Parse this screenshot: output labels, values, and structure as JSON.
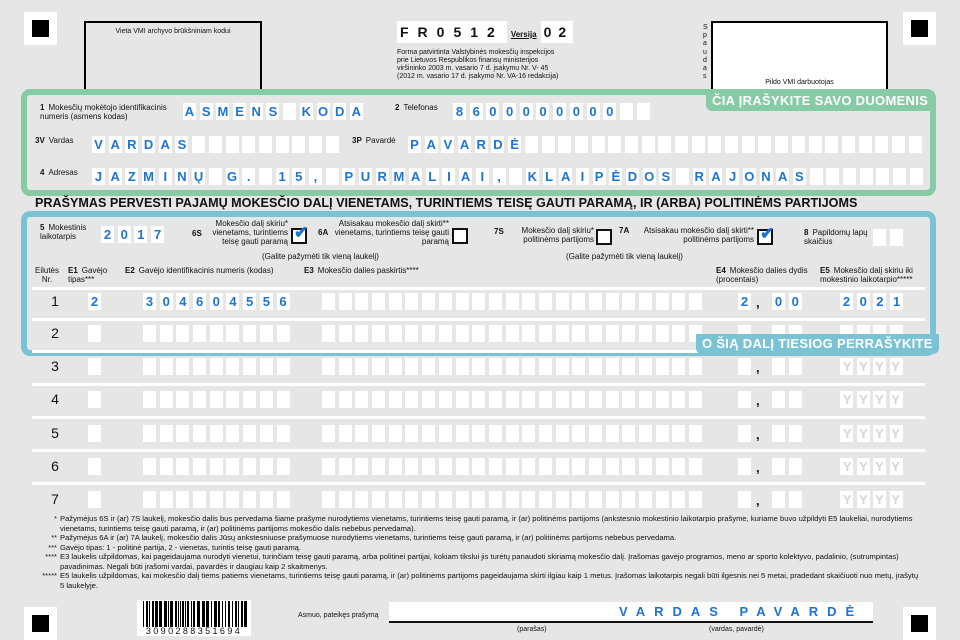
{
  "header": {
    "archive_box_label": "Vieta VMI archyvo brūkšniniam kodui",
    "form_code": "FR0512",
    "version_label": "Versija",
    "version": "02",
    "approval_text": [
      "Forma patvirtinta Valstybinės mokesčių inspekcijos",
      "prie Lietuvos Respublikos finansų ministerijos",
      "viršininko 2003 m. vasario 7 d. įsakymu Nr. V- 45",
      "(2012 m. vasario 17 d. įsakymo Nr. VA-16 redakcija)"
    ],
    "stamp_label": "Spaudas",
    "vmi_box_label": "Pildo VMI darbuotojas"
  },
  "personal": {
    "banner": "ČIA ĮRAŠYKITE SAVO DUOMENIS",
    "banner_color": "#86cba3",
    "id_no": "1",
    "id_label": "Mokesčių mokėtojo identifikacinis numeris (asmens kodas)",
    "id_value": "ASMENS KODAS",
    "phone_no": "2",
    "phone_label": "Telefonas",
    "phone_value": "8600000000",
    "name_no": "3V",
    "name_label": "Vardas",
    "name_value": "VARDAS",
    "surname_no": "3P",
    "surname_label": "Pavardė",
    "surname_value": "PAVARDĖ",
    "address_no": "4",
    "address_label": "Adresas",
    "address_value": "JAZMINŲ G. 15, PURMALIAI, KLAIPĖDOS RAJONAS"
  },
  "title": "PRAŠYMAS PERVESTI PAJAMŲ MOKESČIO DALĮ VIENETAMS, TURINTIEMS TEISĘ GAUTI PARAMĄ, IR (ARBA) POLITINĖMS PARTIJOMS",
  "request": {
    "banner": "O ŠIĄ DALĮ TIESIOG PERRAŠYKITE",
    "banner_color": "#7ac3d4",
    "period_no": "5",
    "period_label": "Mokestinis laikotarpis",
    "period_value": "2017",
    "c6s_no": "6S",
    "c6s_label": "Mokesčio dalį skiriu* vienetams, turintiems teisę gauti paramą",
    "c6s_checked": true,
    "c6a_no": "6A",
    "c6a_label": "Atsisakau mokesčio dalį skirti** vienetams, turintiems teisę gauti paramą",
    "c6a_checked": false,
    "c7s_no": "7S",
    "c7s_label": "Mokesčio dalį skiriu* politinėms partijoms",
    "c7s_checked": false,
    "c7a_no": "7A",
    "c7a_label": "Atsisakau mokesčio dalį skirti** politinėms partijoms",
    "c7a_checked": true,
    "hint": "(Galite pažymėti tik vieną laukelį)",
    "pages_no": "8",
    "pages_label": "Papildomų lapų skaičius",
    "pages_value": ""
  },
  "table": {
    "col_nr": "Eilutės Nr.",
    "e1_no": "E1",
    "e1_label": "Gavėjo tipas***",
    "e2_no": "E2",
    "e2_label": "Gavėjo identifikacinis numeris (kodas)",
    "e3_no": "E3",
    "e3_label": "Mokesčio dalies paskirtis****",
    "e4_no": "E4",
    "e4_label": "Mokesčio dalies dydis (procentais)",
    "e5_no": "E5",
    "e5_label": "Mokesčio dalį skiriu iki mokestinio laikotarpio*****",
    "e5_placeholder": "YYYY",
    "rows": [
      {
        "nr": "1",
        "e1": "2",
        "e2": "304604556",
        "e3": "",
        "e4_int": "2",
        "e4_dec": "00",
        "e5": "2021"
      },
      {
        "nr": "2",
        "e1": "",
        "e2": "",
        "e3": "",
        "e4_int": "",
        "e4_dec": "",
        "e5": ""
      },
      {
        "nr": "3",
        "e1": "",
        "e2": "",
        "e3": "",
        "e4_int": "",
        "e4_dec": "",
        "e5": ""
      },
      {
        "nr": "4",
        "e1": "",
        "e2": "",
        "e3": "",
        "e4_int": "",
        "e4_dec": "",
        "e5": ""
      },
      {
        "nr": "5",
        "e1": "",
        "e2": "",
        "e3": "",
        "e4_int": "",
        "e4_dec": "",
        "e5": ""
      },
      {
        "nr": "6",
        "e1": "",
        "e2": "",
        "e3": "",
        "e4_int": "",
        "e4_dec": "",
        "e5": ""
      },
      {
        "nr": "7",
        "e1": "",
        "e2": "",
        "e3": "",
        "e4_int": "",
        "e4_dec": "",
        "e5": ""
      }
    ]
  },
  "footnotes": [
    {
      "mark": "*",
      "text": "Pažymėjus 6S ir (ar) 7S  laukelį, mokesčio dalis bus pervedama šiame prašyme nurodytiems vienetams, turintiems teisę gauti paramą, ir (ar) politinėms partijoms (ankstesnio mokestinio laikotarpio prašyme, kuriame buvo užpildyti E5 laukeliai, nurodytiems vienetams, turintiems teisę gauti paramą, ir (ar) politinėms partijoms mokesčio dalis nebebus pervedama)."
    },
    {
      "mark": "**",
      "text": "Pažymėjus 6A ir (ar) 7A  laukelį, mokesčio dalis Jūsų ankstesniuose prašymuose nurodytiems vienetams, turintiems teisę gauti paramą, ir (ar) politinėms partijoms nebebus pervedama."
    },
    {
      "mark": "***",
      "text": "Gavėjo tipas: 1 - politinė partija, 2 - vienetas, turintis teisę gauti paramą."
    },
    {
      "mark": "****",
      "text": "E3 laukelis užpildomas, kai pageidaujama nurodyti vienetui, turinčiam teisę gauti paramą, arba politinei partijai, kokiam tikslui jis turėtų panaudoti skiriamą mokesčio dalį. Įrašomas gavėjo programos, meno ar sporto kolektyvo, padalinio, (sutrumpintas) pavadinimas. Negali būti įrašomi vardai, pavardės ir daugiau kaip 2 skaitmenys."
    },
    {
      "mark": "*****",
      "text": "E5 laukelis užpildomas, kai mokesčio dalį tiems patiems vienetams, turintiems teisę gauti paramą, ir (ar) politinėms partijoms pageidaujama skirti ilgiau kaip 1 metus. Įrašomas laikotarpis negali būti ilgesnis nei 5 metai, pradedant skaičiuoti nuo metų, įrašytų 5 laukelyje."
    }
  ],
  "footer": {
    "barcode_number": "3090288351694",
    "signer_label": "Asmuo, pateikęs prašymą",
    "signature_value": "VARDAS PAVARDĖ",
    "signature_caption": "(parašas)",
    "name_caption": "(vardas, pavardė)"
  }
}
